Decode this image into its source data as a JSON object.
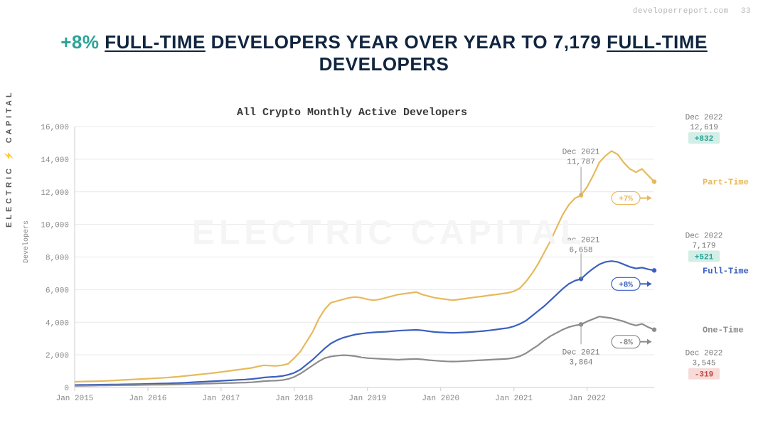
{
  "header": {
    "source": "developerreport.com",
    "page_number": "33"
  },
  "title": {
    "pct": "+8%",
    "part1": " ",
    "ul1": "FULL-TIME",
    "part2": " DEVELOPERS YEAR OVER YEAR TO 7,179 ",
    "ul2": "FULL-TIME",
    "part3": " DEVELOPERS"
  },
  "brand_vertical": "ELECTRIC ⚡ CAPITAL",
  "watermark": "ELECTRIC  CAPITAL",
  "chart": {
    "type": "line",
    "title": "All Crypto Monthly Active Developers",
    "ylabel": "Developers",
    "x_start_year": 2015,
    "x_end_year": 2023,
    "x_tick_years": [
      2015,
      2016,
      2017,
      2018,
      2019,
      2020,
      2021,
      2022
    ],
    "x_tick_labels": [
      "Jan 2015",
      "Jan 2016",
      "Jan 2017",
      "Jan 2018",
      "Jan 2019",
      "Jan 2020",
      "Jan 2021",
      "Jan 2022"
    ],
    "ylim": [
      0,
      16000
    ],
    "ytick_step": 2000,
    "y_tick_labels": [
      "0",
      "2,000",
      "4,000",
      "6,000",
      "8,000",
      "10,000",
      "12,000",
      "14,000",
      "16,000"
    ],
    "background_color": "#ffffff",
    "grid_color": "#e9e9e9",
    "axis_color": "#cccccc",
    "tick_fontsize": 11,
    "title_fontsize": 15,
    "line_width": 2.2,
    "series": [
      {
        "name": "Part-Time",
        "color": "#e7b95b",
        "label": "Part-Time",
        "pct_change": "+7%",
        "values": [
          350,
          360,
          370,
          380,
          390,
          400,
          420,
          440,
          460,
          480,
          500,
          520,
          540,
          560,
          580,
          600,
          630,
          660,
          700,
          740,
          780,
          820,
          860,
          900,
          950,
          1000,
          1050,
          1100,
          1150,
          1200,
          1280,
          1360,
          1340,
          1320,
          1360,
          1450,
          1800,
          2200,
          2800,
          3400,
          4200,
          4800,
          5200,
          5300,
          5400,
          5500,
          5550,
          5500,
          5400,
          5350,
          5400,
          5500,
          5600,
          5700,
          5750,
          5800,
          5850,
          5700,
          5600,
          5500,
          5450,
          5400,
          5350,
          5400,
          5450,
          5500,
          5550,
          5600,
          5650,
          5700,
          5750,
          5800,
          5900,
          6100,
          6500,
          7000,
          7600,
          8300,
          9000,
          9800,
          10600,
          11200,
          11600,
          11787,
          12300,
          13000,
          13800,
          14200,
          14500,
          14300,
          13800,
          13400,
          13200,
          13400,
          13000,
          12619
        ]
      },
      {
        "name": "Full-Time",
        "color": "#3b5fc0",
        "label": "Full-Time",
        "pct_change": "+8%",
        "values": [
          150,
          155,
          160,
          165,
          170,
          175,
          180,
          185,
          190,
          195,
          200,
          210,
          220,
          230,
          240,
          250,
          260,
          275,
          290,
          310,
          330,
          350,
          370,
          390,
          410,
          430,
          450,
          470,
          490,
          520,
          560,
          610,
          640,
          660,
          700,
          780,
          900,
          1100,
          1400,
          1700,
          2050,
          2400,
          2700,
          2900,
          3050,
          3150,
          3250,
          3300,
          3350,
          3380,
          3400,
          3420,
          3450,
          3480,
          3500,
          3520,
          3530,
          3500,
          3450,
          3400,
          3380,
          3360,
          3350,
          3360,
          3380,
          3400,
          3430,
          3460,
          3500,
          3550,
          3600,
          3650,
          3750,
          3900,
          4100,
          4400,
          4700,
          5000,
          5350,
          5700,
          6050,
          6350,
          6550,
          6658,
          7000,
          7300,
          7550,
          7700,
          7750,
          7700,
          7550,
          7400,
          7300,
          7350,
          7250,
          7179
        ]
      },
      {
        "name": "One-Time",
        "color": "#8c8c8c",
        "label": "One-Time",
        "pct_change": "-8%",
        "values": [
          100,
          105,
          110,
          115,
          120,
          125,
          130,
          135,
          140,
          145,
          150,
          155,
          160,
          165,
          170,
          175,
          180,
          190,
          200,
          210,
          220,
          230,
          240,
          250,
          260,
          270,
          280,
          290,
          300,
          320,
          350,
          390,
          410,
          420,
          450,
          520,
          650,
          850,
          1100,
          1350,
          1600,
          1800,
          1900,
          1950,
          1980,
          1960,
          1920,
          1850,
          1800,
          1780,
          1760,
          1740,
          1720,
          1700,
          1720,
          1740,
          1750,
          1720,
          1680,
          1650,
          1620,
          1600,
          1590,
          1600,
          1620,
          1640,
          1660,
          1680,
          1700,
          1720,
          1740,
          1760,
          1820,
          1920,
          2100,
          2350,
          2600,
          2900,
          3150,
          3350,
          3550,
          3700,
          3800,
          3864,
          4050,
          4200,
          4350,
          4300,
          4250,
          4150,
          4050,
          3900,
          3800,
          3900,
          3700,
          3545
        ]
      }
    ],
    "callouts": {
      "dec2021": {
        "month_index": 83,
        "part_time": {
          "label": "Dec 2021",
          "value": "11,787"
        },
        "full_time": {
          "label": "Dec 2021",
          "value": "6,658"
        },
        "one_time": {
          "label": "Dec 2021",
          "value": "3,864"
        }
      },
      "dec2022": {
        "month_index": 95,
        "part_time": {
          "label": "Dec 2022",
          "value": "12,619",
          "delta": "+832",
          "delta_sign": "pos"
        },
        "full_time": {
          "label": "Dec 2022",
          "value": "7,179",
          "delta": "+521",
          "delta_sign": "pos"
        },
        "one_time": {
          "label": "Dec 2022",
          "value": "3,545",
          "delta": "-319",
          "delta_sign": "neg"
        }
      }
    }
  }
}
